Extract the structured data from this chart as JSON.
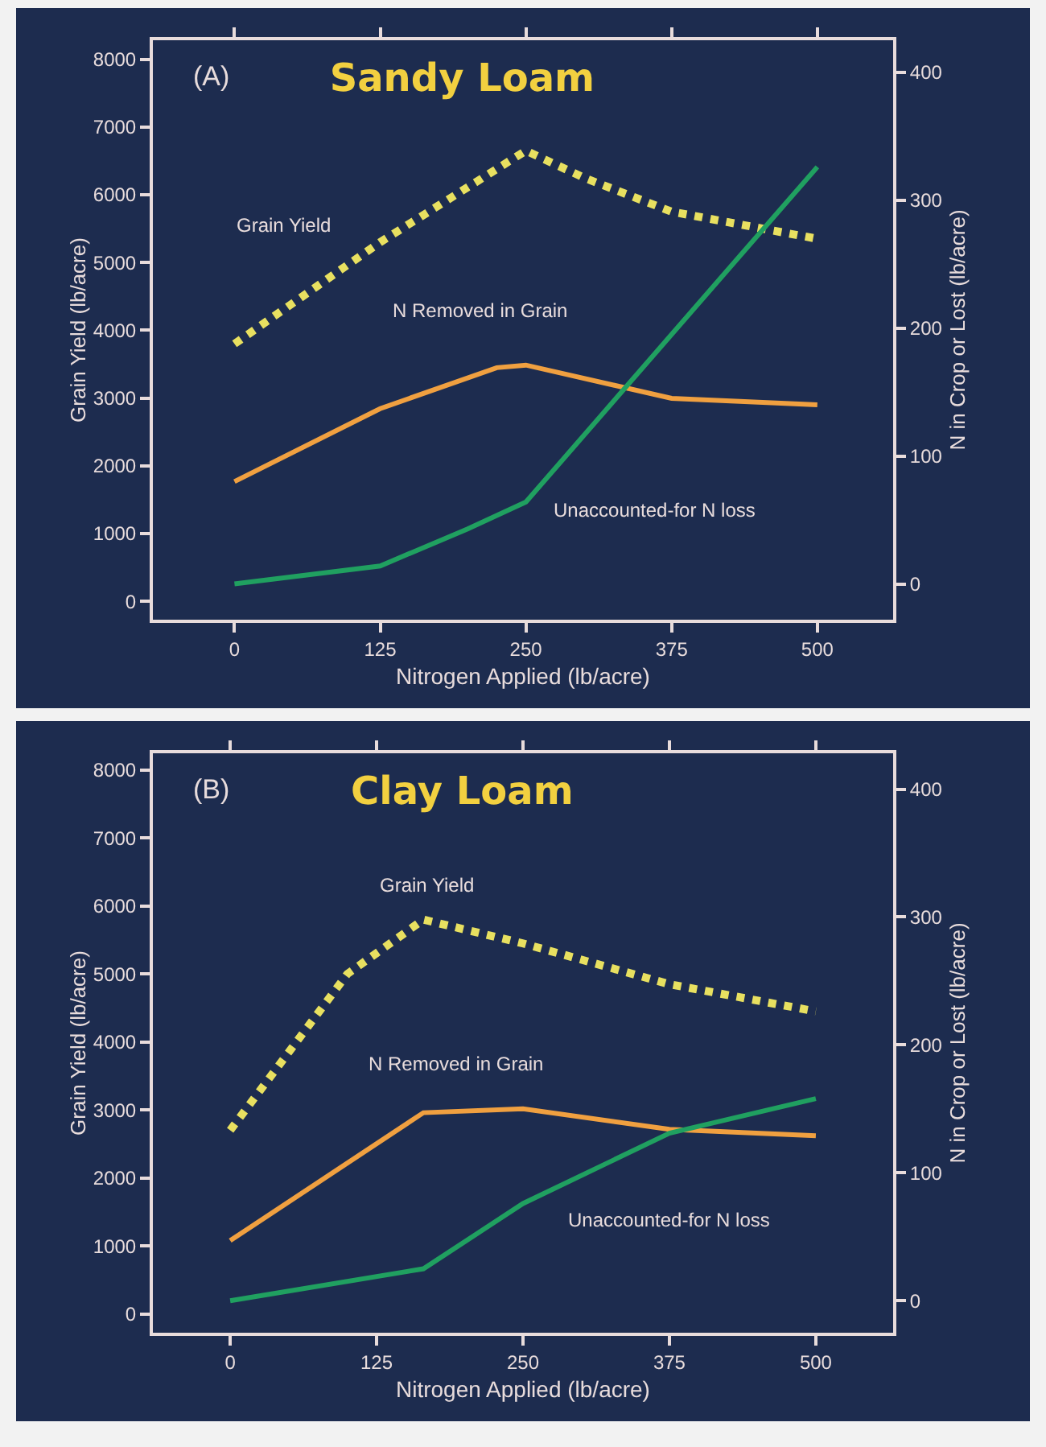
{
  "chart_data": [
    {
      "type": "line",
      "title": "Sandy Loam",
      "xlabel": "Nitrogen Applied (lb/acre)",
      "ylabel": "Grain Yield (lb/acre)",
      "y2label": "N in Crop or Lost (lb/acre)",
      "annotations": [
        "(A)"
      ],
      "xlim": [
        -70,
        565
      ],
      "xticks": [
        0,
        125,
        250,
        375,
        500
      ],
      "ylim": [
        -270,
        8280
      ],
      "yticks": [
        0,
        1000,
        2000,
        3000,
        4000,
        5000,
        6000,
        7000,
        8000
      ],
      "y2lim": [
        -28,
        425
      ],
      "y2ticks": [
        0,
        100,
        200,
        300,
        400
      ],
      "series": [
        {
          "name": "Grain Yield",
          "color": "#e8e060",
          "line_style": "dotted",
          "x": [
            0,
            125,
            250,
            300,
            375,
            500
          ],
          "values": [
            3800,
            5300,
            6650,
            6250,
            5750,
            5350
          ]
        },
        {
          "name": "N Removed in Grain",
          "color": "#f0a040",
          "axis": "y2",
          "line_style": "solid",
          "x": [
            0,
            125,
            225,
            250,
            375,
            500
          ],
          "values": [
            80,
            137,
            169,
            171,
            145,
            140
          ]
        },
        {
          "name": "Unaccounted-for N loss",
          "color": "#20a060",
          "axis": "y2",
          "line_style": "solid",
          "x": [
            0,
            125,
            200,
            250,
            375,
            500
          ],
          "values": [
            0,
            14,
            43,
            64,
            195,
            326
          ]
        }
      ]
    },
    {
      "type": "line",
      "title": "Clay Loam",
      "xlabel": "Nitrogen Applied (lb/acre)",
      "ylabel": "Grain Yield (lb/acre)",
      "y2label": "N in Crop or Lost (lb/acre)",
      "annotations": [
        "(B)"
      ],
      "xlim": [
        -66,
        566
      ],
      "xticks": [
        0,
        125,
        250,
        375,
        500
      ],
      "ylim": [
        -277,
        8247
      ],
      "yticks": [
        0,
        1000,
        2000,
        3000,
        4000,
        5000,
        6000,
        7000,
        8000
      ],
      "y2lim": [
        -25,
        428
      ],
      "y2ticks": [
        0,
        100,
        200,
        300,
        400
      ],
      "series": [
        {
          "name": "Grain Yield",
          "color": "#e8e060",
          "line_style": "dotted",
          "x": [
            0,
            100,
            165,
            250,
            375,
            500
          ],
          "values": [
            2700,
            5000,
            5800,
            5450,
            4850,
            4450
          ]
        },
        {
          "name": "N Removed in Grain",
          "color": "#f0a040",
          "axis": "y2",
          "line_style": "solid",
          "x": [
            0,
            165,
            250,
            375,
            500
          ],
          "values": [
            47,
            147,
            150,
            134,
            129
          ]
        },
        {
          "name": "Unaccounted-for N loss",
          "color": "#20a060",
          "axis": "y2",
          "line_style": "solid",
          "x": [
            0,
            165,
            250,
            375,
            500
          ],
          "values": [
            0,
            25,
            76,
            131,
            158
          ]
        }
      ]
    }
  ]
}
